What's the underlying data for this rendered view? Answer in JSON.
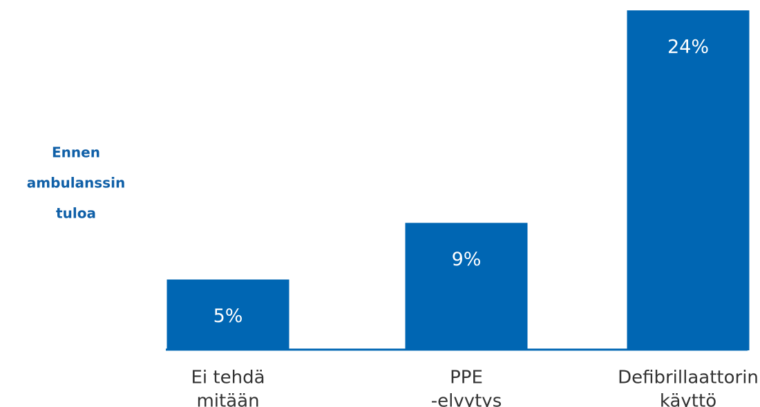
{
  "chart_data": {
    "type": "bar",
    "ylabel": [
      "Ennen",
      "ambulanssin",
      "tuloa"
    ],
    "categories": [
      [
        "Ei tehdä",
        "mitään"
      ],
      [
        "PPE",
        "-elvytys"
      ],
      [
        "Defibrillaattorin",
        "käyttö"
      ]
    ],
    "values": [
      5,
      9,
      24
    ],
    "value_labels": [
      "5%",
      "9%",
      "24%"
    ],
    "color": "#0066b3",
    "ylim": [
      0,
      24
    ]
  }
}
